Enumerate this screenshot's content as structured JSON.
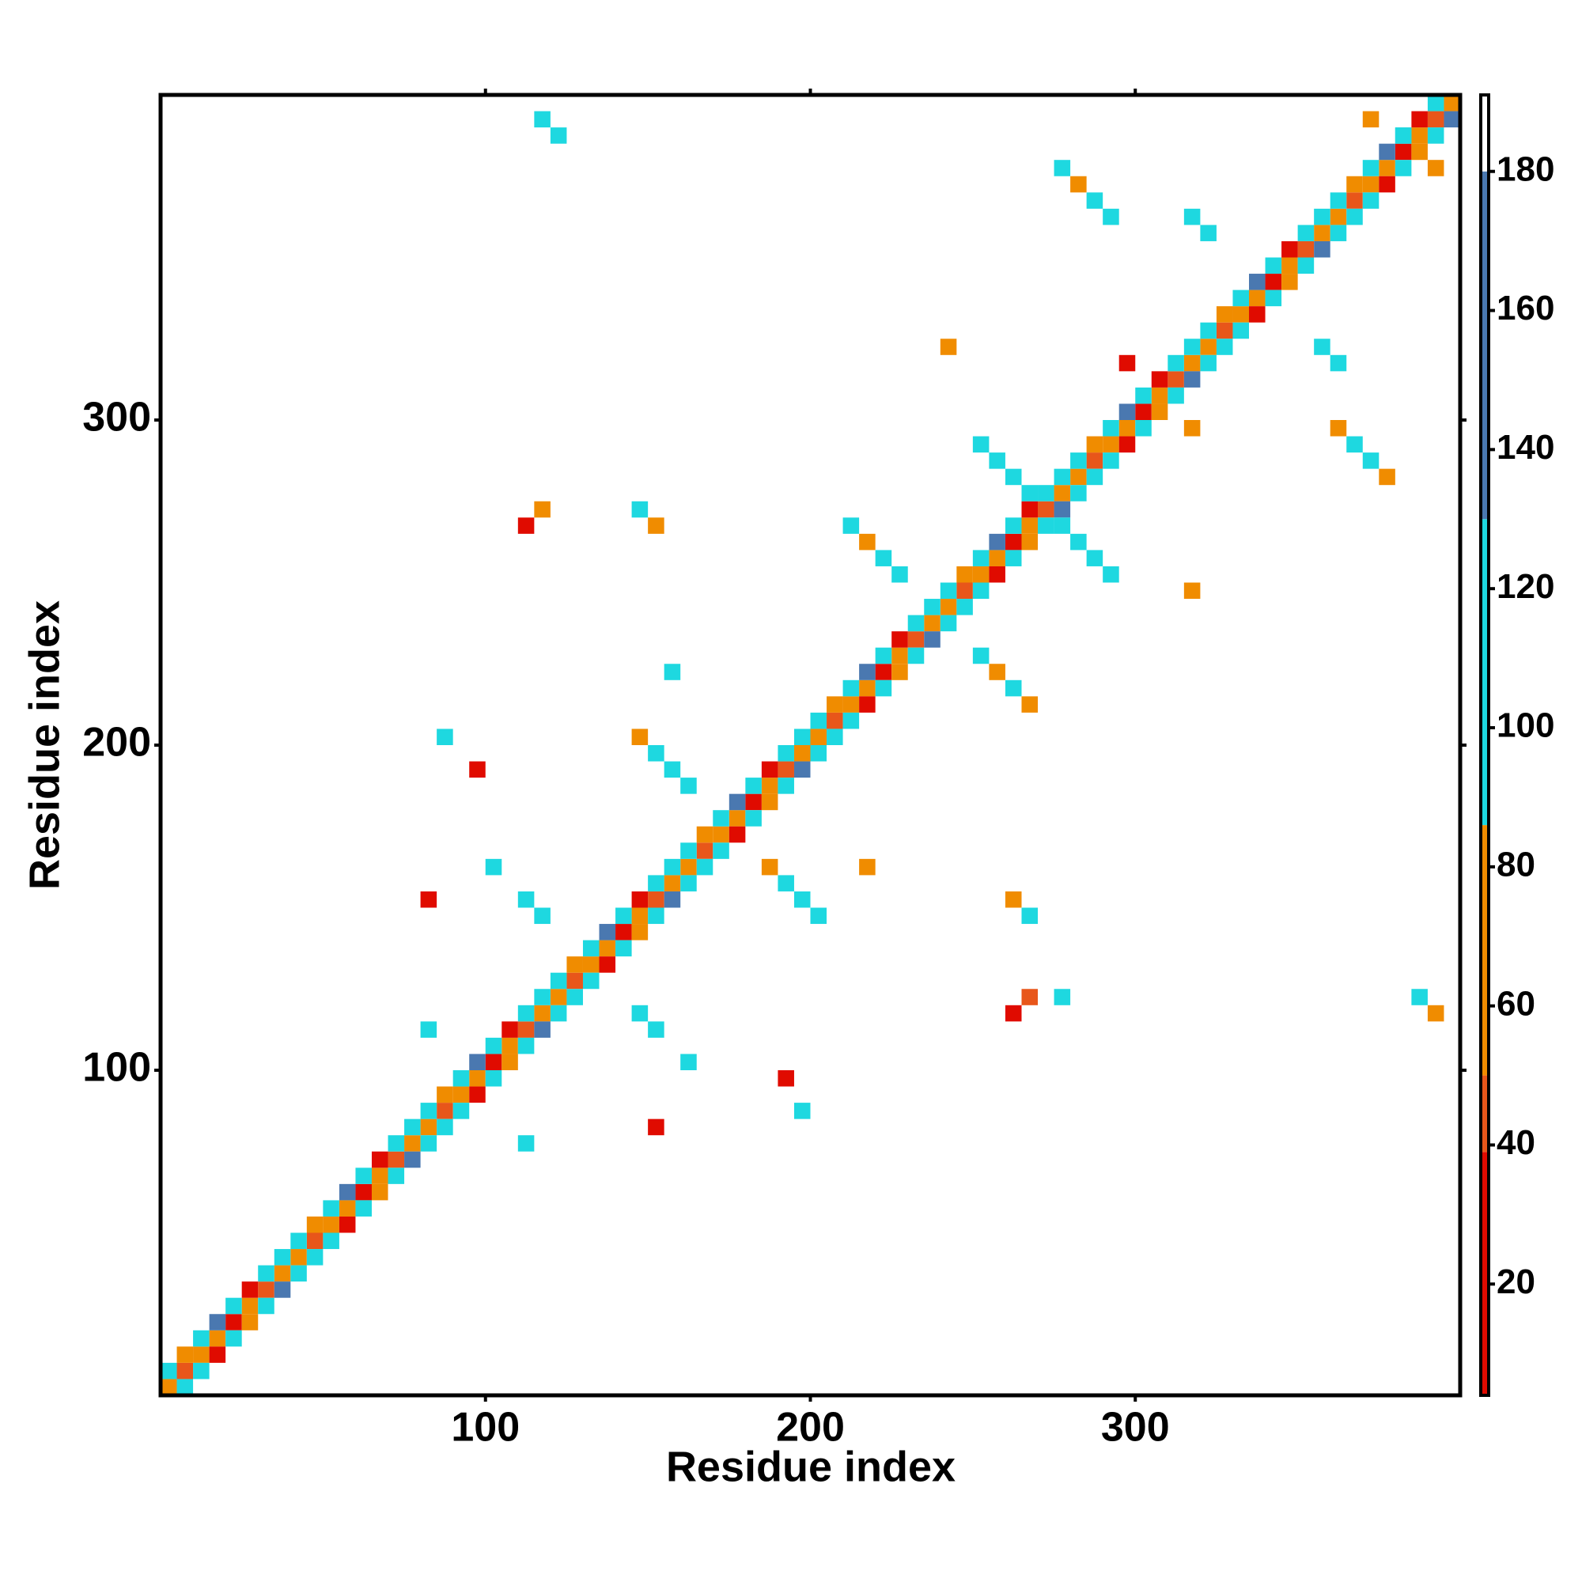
{
  "chart_data": {
    "type": "heatmap",
    "xlabel": "Residue index",
    "ylabel": "Residue index",
    "xlim": [
      0,
      400
    ],
    "ylim": [
      0,
      400
    ],
    "xticks": [
      100,
      200,
      300
    ],
    "yticks": [
      100,
      200,
      300
    ],
    "x": [
      0,
      5,
      10,
      15,
      20,
      25,
      30,
      35,
      40,
      45,
      50,
      55,
      60,
      65,
      70,
      75,
      80,
      85,
      90,
      95,
      100,
      105,
      110,
      115,
      120,
      125,
      130,
      135,
      140,
      145,
      150,
      155,
      160,
      165,
      170,
      175,
      180,
      185,
      190,
      195,
      200,
      205,
      210,
      215,
      220,
      225,
      230,
      235,
      240,
      245,
      250,
      255,
      260,
      265,
      270,
      275,
      280,
      285,
      290,
      295,
      300,
      305,
      310,
      315,
      320,
      325,
      330,
      335,
      340,
      345,
      350,
      355,
      360,
      365,
      370,
      375,
      380,
      385,
      390,
      395,
      0,
      5,
      10,
      15,
      20,
      25,
      30,
      35,
      40,
      45,
      50,
      55,
      60,
      65,
      70,
      75,
      80,
      85,
      90,
      95,
      100,
      105,
      110,
      115,
      120,
      125,
      130,
      135,
      140,
      145,
      150,
      155,
      160,
      165,
      170,
      175,
      180,
      185,
      190,
      195,
      200,
      205,
      210,
      215,
      220,
      225,
      230,
      235,
      240,
      245,
      250,
      255,
      260,
      265,
      270,
      275,
      280,
      285,
      290,
      295,
      300,
      305,
      310,
      315,
      320,
      325,
      330,
      335,
      340,
      345,
      350,
      355,
      360,
      365,
      370,
      375,
      380,
      385,
      390,
      5,
      10,
      15,
      20,
      25,
      30,
      35,
      40,
      45,
      50,
      55,
      60,
      65,
      70,
      75,
      80,
      85,
      90,
      95,
      100,
      105,
      110,
      115,
      120,
      125,
      130,
      135,
      140,
      145,
      150,
      155,
      160,
      165,
      170,
      175,
      180,
      185,
      190,
      195,
      200,
      205,
      210,
      215,
      220,
      225,
      230,
      235,
      240,
      245,
      250,
      255,
      260,
      265,
      270,
      275,
      280,
      285,
      290,
      295,
      300,
      305,
      310,
      315,
      320,
      325,
      330,
      335,
      340,
      345,
      350,
      355,
      360,
      365,
      370,
      375,
      380,
      385,
      390,
      395,
      115,
      120,
      275,
      280,
      285,
      290,
      320,
      315,
      370,
      380,
      390,
      355,
      360,
      240,
      295,
      315,
      360,
      365,
      370,
      375,
      250,
      255,
      260,
      265,
      275,
      280,
      285,
      290,
      110,
      115,
      145,
      150,
      210,
      215,
      220,
      225,
      315,
      250,
      255,
      260,
      265,
      155,
      145,
      150,
      155,
      160,
      95,
      85,
      185,
      190,
      195,
      200,
      80,
      110,
      115,
      100,
      215,
      260,
      265,
      260,
      265,
      275,
      385,
      390,
      145,
      150,
      80,
      160,
      190,
      195,
      150,
      110
    ],
    "y": [
      0,
      5,
      10,
      15,
      20,
      25,
      30,
      35,
      40,
      45,
      50,
      55,
      60,
      65,
      70,
      75,
      80,
      85,
      90,
      95,
      100,
      105,
      110,
      115,
      120,
      125,
      130,
      135,
      140,
      145,
      150,
      155,
      160,
      165,
      170,
      175,
      180,
      185,
      190,
      195,
      200,
      205,
      210,
      215,
      220,
      225,
      230,
      235,
      240,
      245,
      250,
      255,
      260,
      265,
      270,
      275,
      280,
      285,
      290,
      295,
      300,
      305,
      310,
      315,
      320,
      325,
      330,
      335,
      340,
      345,
      350,
      355,
      360,
      365,
      370,
      375,
      380,
      385,
      390,
      395,
      5,
      10,
      15,
      20,
      25,
      30,
      35,
      40,
      45,
      50,
      55,
      60,
      65,
      70,
      75,
      80,
      85,
      90,
      95,
      100,
      105,
      110,
      115,
      120,
      125,
      130,
      135,
      140,
      145,
      150,
      155,
      160,
      165,
      170,
      175,
      180,
      185,
      190,
      195,
      200,
      205,
      210,
      215,
      220,
      225,
      230,
      235,
      240,
      245,
      250,
      255,
      260,
      265,
      270,
      275,
      280,
      285,
      290,
      295,
      300,
      305,
      310,
      315,
      320,
      325,
      330,
      335,
      340,
      345,
      350,
      355,
      360,
      365,
      370,
      375,
      380,
      385,
      390,
      395,
      0,
      5,
      10,
      15,
      20,
      25,
      30,
      35,
      40,
      45,
      50,
      55,
      60,
      65,
      70,
      75,
      80,
      85,
      90,
      95,
      100,
      105,
      110,
      115,
      120,
      125,
      130,
      135,
      140,
      145,
      150,
      155,
      160,
      165,
      170,
      175,
      180,
      185,
      190,
      195,
      200,
      205,
      210,
      215,
      220,
      225,
      230,
      235,
      240,
      245,
      250,
      255,
      260,
      265,
      270,
      275,
      280,
      285,
      290,
      295,
      300,
      305,
      310,
      315,
      320,
      325,
      330,
      335,
      340,
      345,
      350,
      355,
      360,
      365,
      370,
      375,
      380,
      385,
      390,
      390,
      385,
      375,
      370,
      365,
      360,
      355,
      360,
      390,
      385,
      375,
      320,
      315,
      320,
      315,
      295,
      295,
      290,
      285,
      280,
      290,
      285,
      280,
      275,
      265,
      260,
      255,
      250,
      265,
      270,
      270,
      265,
      265,
      260,
      255,
      250,
      245,
      225,
      220,
      215,
      210,
      220,
      200,
      195,
      190,
      185,
      190,
      200,
      160,
      155,
      150,
      145,
      150,
      150,
      145,
      160,
      160,
      150,
      145,
      115,
      120,
      120,
      120,
      115,
      115,
      110,
      110,
      100,
      95,
      85,
      80,
      75
    ],
    "values": [
      70,
      45,
      70,
      70,
      30,
      70,
      45,
      70,
      70,
      45,
      70,
      70,
      30,
      70,
      45,
      70,
      70,
      45,
      70,
      70,
      30,
      70,
      45,
      70,
      70,
      45,
      70,
      70,
      30,
      70,
      45,
      70,
      70,
      45,
      70,
      70,
      30,
      70,
      45,
      70,
      70,
      45,
      70,
      70,
      30,
      70,
      45,
      70,
      70,
      45,
      70,
      70,
      30,
      70,
      45,
      70,
      70,
      45,
      70,
      70,
      30,
      70,
      45,
      70,
      70,
      45,
      70,
      70,
      30,
      70,
      45,
      70,
      70,
      45,
      70,
      70,
      30,
      70,
      45,
      70,
      100,
      60,
      100,
      140,
      100,
      30,
      100,
      100,
      100,
      60,
      100,
      140,
      100,
      30,
      100,
      100,
      100,
      60,
      100,
      140,
      100,
      30,
      100,
      100,
      100,
      60,
      100,
      140,
      100,
      30,
      100,
      100,
      100,
      60,
      100,
      140,
      100,
      30,
      100,
      100,
      100,
      60,
      100,
      140,
      100,
      30,
      100,
      100,
      100,
      60,
      100,
      140,
      100,
      30,
      100,
      100,
      100,
      60,
      100,
      140,
      100,
      30,
      100,
      100,
      100,
      60,
      100,
      140,
      100,
      30,
      100,
      100,
      100,
      60,
      100,
      140,
      100,
      30,
      100,
      100,
      100,
      30,
      100,
      60,
      100,
      140,
      100,
      100,
      100,
      30,
      100,
      60,
      100,
      140,
      100,
      100,
      100,
      30,
      100,
      60,
      100,
      140,
      100,
      100,
      100,
      30,
      100,
      60,
      100,
      140,
      100,
      100,
      100,
      30,
      100,
      60,
      100,
      140,
      100,
      100,
      100,
      30,
      100,
      60,
      100,
      140,
      100,
      100,
      100,
      30,
      100,
      60,
      100,
      140,
      100,
      100,
      100,
      30,
      100,
      60,
      100,
      140,
      100,
      100,
      100,
      30,
      100,
      60,
      100,
      140,
      100,
      100,
      100,
      30,
      100,
      60,
      100,
      140,
      100,
      100,
      100,
      60,
      100,
      100,
      100,
      100,
      60,
      100,
      60,
      100,
      100,
      60,
      30,
      60,
      60,
      100,
      100,
      60,
      100,
      100,
      100,
      100,
      100,
      100,
      100,
      100,
      30,
      60,
      100,
      60,
      100,
      60,
      100,
      100,
      60,
      100,
      60,
      100,
      60,
      100,
      60,
      100,
      100,
      100,
      30,
      100,
      60,
      100,
      100,
      100,
      30,
      100,
      100,
      100,
      60,
      60,
      100,
      30,
      45,
      100,
      100,
      60,
      100,
      100,
      100,
      100,
      30,
      100,
      30,
      100
    ],
    "colorbar": {
      "lim": [
        4,
        191
      ],
      "ticks": [
        20,
        40,
        60,
        80,
        100,
        120,
        140,
        160,
        180
      ],
      "bounds": [
        4,
        39,
        50,
        86,
        130,
        180,
        191
      ],
      "colors": [
        "#e00b00",
        "#e8561a",
        "#f08c00",
        "#1ed8e0",
        "#4a78b0",
        "#ffffff"
      ]
    }
  }
}
